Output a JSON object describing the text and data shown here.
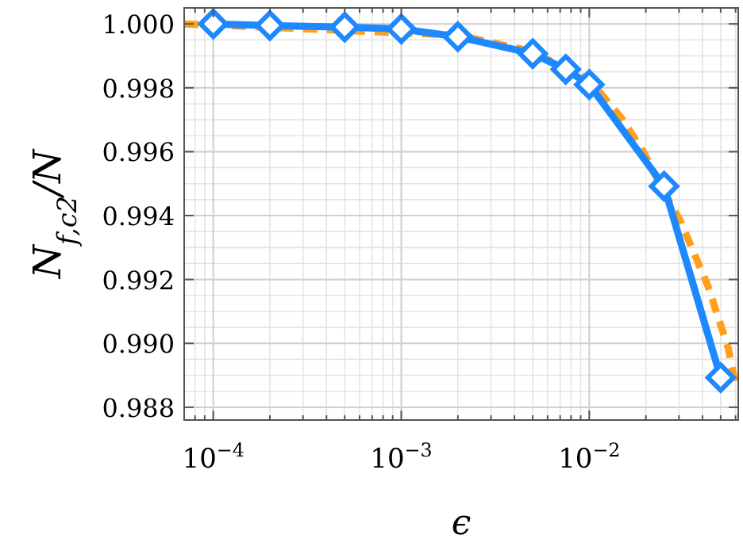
{
  "chart_data": {
    "type": "line",
    "xlabel": "ϵ",
    "ylabel": "N$_{f,c2}$/N",
    "log": "x",
    "grid": true,
    "xlim": [
      7e-05,
      0.062
    ],
    "ylim": [
      0.9876,
      1.0005
    ],
    "xticks": [
      {
        "value": 0.0001,
        "label": "10$^{−4}$"
      },
      {
        "value": 0.001,
        "label": "10$^{−3}$"
      },
      {
        "value": 0.01,
        "label": "10$^{−2}$"
      }
    ],
    "yticks": [
      {
        "value": 0.988,
        "label": "0.988"
      },
      {
        "value": 0.99,
        "label": "0.990"
      },
      {
        "value": 0.992,
        "label": "0.992"
      },
      {
        "value": 0.994,
        "label": "0.994"
      },
      {
        "value": 0.996,
        "label": "0.996"
      },
      {
        "value": 0.998,
        "label": "0.998"
      },
      {
        "value": 1,
        "label": "1.000"
      }
    ],
    "series": [
      {
        "color": "#ff9f1c",
        "line_style": "dashed",
        "marker": "none",
        "x": [
          7e-05,
          0.002,
          0.0047,
          0.0076,
          0.0102,
          0.0117,
          0.015,
          0.0197,
          0.0239,
          0.0307,
          0.0427,
          0.055,
          0.06
        ],
        "values": [
          1.0,
          0.99965,
          0.99917,
          0.99861,
          0.99821,
          0.99777,
          0.99702,
          0.99593,
          0.99494,
          0.9938,
          0.99181,
          0.98983,
          0.98868
        ]
      },
      {
        "color": "#1e88ff",
        "line_style": "solid",
        "marker": "diamond",
        "x": [
          0.0001,
          0.0002,
          0.0005,
          0.001,
          0.002,
          0.005,
          0.0075,
          0.01,
          0.025,
          0.05
        ],
        "values": [
          1.0,
          0.99995,
          0.9999,
          0.99984,
          0.9996,
          0.99907,
          0.99858,
          0.9981,
          0.99492,
          0.98893
        ]
      }
    ]
  }
}
